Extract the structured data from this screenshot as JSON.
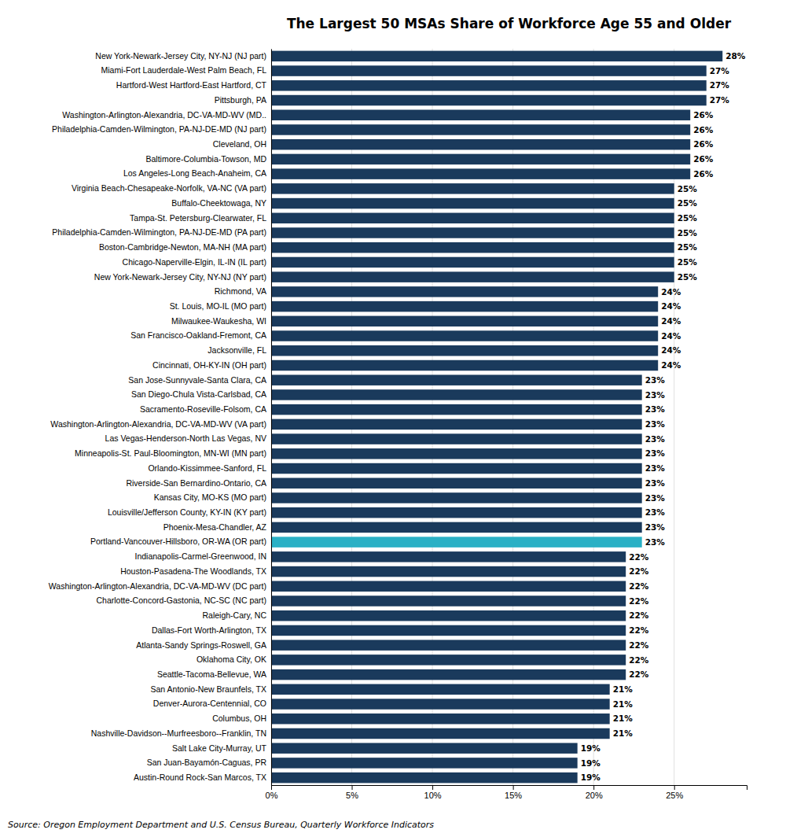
{
  "chart_data": {
    "type": "bar",
    "orientation": "horizontal",
    "title": "The Largest 50 MSAs Share of Workforce Age 55 and Older",
    "annotations": [
      "Source: Oregon Employment Department and U.S. Census Bureau, Quarterly Workforce Indicators"
    ],
    "categories": [
      "New York-Newark-Jersey City, NY-NJ (NJ part)",
      "Miami-Fort Lauderdale-West Palm Beach, FL",
      "Hartford-West Hartford-East Hartford, CT",
      "Pittsburgh, PA",
      "Washington-Arlington-Alexandria, DC-VA-MD-WV (MD..",
      "Philadelphia-Camden-Wilmington, PA-NJ-DE-MD (NJ part)",
      "Cleveland, OH",
      "Baltimore-Columbia-Towson, MD",
      "Los Angeles-Long Beach-Anaheim, CA",
      "Virginia Beach-Chesapeake-Norfolk, VA-NC (VA part)",
      "Buffalo-Cheektowaga, NY",
      "Tampa-St. Petersburg-Clearwater, FL",
      "Philadelphia-Camden-Wilmington, PA-NJ-DE-MD (PA part)",
      "Boston-Cambridge-Newton, MA-NH (MA part)",
      "Chicago-Naperville-Elgin, IL-IN (IL part)",
      "New York-Newark-Jersey City, NY-NJ (NY part)",
      "Richmond, VA",
      "St. Louis, MO-IL (MO part)",
      "Milwaukee-Waukesha, WI",
      "San Francisco-Oakland-Fremont, CA",
      "Jacksonville, FL",
      "Cincinnati, OH-KY-IN (OH part)",
      "San Jose-Sunnyvale-Santa Clara, CA",
      "San Diego-Chula Vista-Carlsbad, CA",
      "Sacramento-Roseville-Folsom, CA",
      "Washington-Arlington-Alexandria, DC-VA-MD-WV (VA part)",
      "Las Vegas-Henderson-North Las Vegas, NV",
      "Minneapolis-St. Paul-Bloomington, MN-WI (MN part)",
      "Orlando-Kissimmee-Sanford, FL",
      "Riverside-San Bernardino-Ontario, CA",
      "Kansas City, MO-KS (MO part)",
      "Louisville/Jefferson County, KY-IN (KY part)",
      "Phoenix-Mesa-Chandler, AZ",
      "Portland-Vancouver-Hillsboro, OR-WA (OR part)",
      "Indianapolis-Carmel-Greenwood, IN",
      "Houston-Pasadena-The Woodlands, TX",
      "Washington-Arlington-Alexandria, DC-VA-MD-WV (DC part)",
      "Charlotte-Concord-Gastonia, NC-SC (NC part)",
      "Raleigh-Cary, NC",
      "Dallas-Fort Worth-Arlington, TX",
      "Atlanta-Sandy Springs-Roswell, GA",
      "Oklahoma City, OK",
      "Seattle-Tacoma-Bellevue, WA",
      "San Antonio-New Braunfels, TX",
      "Denver-Aurora-Centennial, CO",
      "Columbus, OH",
      "Nashville-Davidson--Murfreesboro--Franklin, TN",
      "Salt Lake City-Murray, UT",
      "San Juan-Bayamón-Caguas, PR",
      "Austin-Round Rock-San Marcos, TX"
    ],
    "values": [
      0.28,
      0.27,
      0.27,
      0.27,
      0.26,
      0.26,
      0.26,
      0.26,
      0.26,
      0.25,
      0.25,
      0.25,
      0.25,
      0.25,
      0.25,
      0.25,
      0.24,
      0.24,
      0.24,
      0.24,
      0.24,
      0.24,
      0.23,
      0.23,
      0.23,
      0.23,
      0.23,
      0.23,
      0.23,
      0.23,
      0.23,
      0.23,
      0.23,
      0.23,
      0.22,
      0.22,
      0.22,
      0.22,
      0.22,
      0.22,
      0.22,
      0.22,
      0.22,
      0.21,
      0.21,
      0.21,
      0.21,
      0.19,
      0.19,
      0.19
    ],
    "value_labels": [
      "28%",
      "27%",
      "27%",
      "27%",
      "26%",
      "26%",
      "26%",
      "26%",
      "26%",
      "25%",
      "25%",
      "25%",
      "25%",
      "25%",
      "25%",
      "25%",
      "24%",
      "24%",
      "24%",
      "24%",
      "24%",
      "24%",
      "23%",
      "23%",
      "23%",
      "23%",
      "23%",
      "23%",
      "23%",
      "23%",
      "23%",
      "23%",
      "23%",
      "23%",
      "22%",
      "22%",
      "22%",
      "22%",
      "22%",
      "22%",
      "22%",
      "22%",
      "22%",
      "21%",
      "21%",
      "21%",
      "21%",
      "19%",
      "19%",
      "19%"
    ],
    "data_labels": true,
    "colors": [
      "#1a3a5c",
      "#1a3a5c",
      "#1a3a5c",
      "#1a3a5c",
      "#1a3a5c",
      "#1a3a5c",
      "#1a3a5c",
      "#1a3a5c",
      "#1a3a5c",
      "#1a3a5c",
      "#1a3a5c",
      "#1a3a5c",
      "#1a3a5c",
      "#1a3a5c",
      "#1a3a5c",
      "#1a3a5c",
      "#1a3a5c",
      "#1a3a5c",
      "#1a3a5c",
      "#1a3a5c",
      "#1a3a5c",
      "#1a3a5c",
      "#1a3a5c",
      "#1a3a5c",
      "#1a3a5c",
      "#1a3a5c",
      "#1a3a5c",
      "#1a3a5c",
      "#1a3a5c",
      "#1a3a5c",
      "#1a3a5c",
      "#1a3a5c",
      "#1a3a5c",
      "#2ab0c5",
      "#1a3a5c",
      "#1a3a5c",
      "#1a3a5c",
      "#1a3a5c",
      "#1a3a5c",
      "#1a3a5c",
      "#1a3a5c",
      "#1a3a5c",
      "#1a3a5c",
      "#1a3a5c",
      "#1a3a5c",
      "#1a3a5c",
      "#1a3a5c",
      "#1a3a5c",
      "#1a3a5c",
      "#1a3a5c"
    ],
    "xlim": [
      0,
      0.295
    ],
    "xticks": [
      {
        "value": 0,
        "label": "0%"
      },
      {
        "value": 0.05,
        "label": "5%"
      },
      {
        "value": 0.1,
        "label": "10%"
      },
      {
        "value": 0.15,
        "label": "15%"
      },
      {
        "value": 0.2,
        "label": "20%"
      },
      {
        "value": 0.25,
        "label": "25%"
      }
    ],
    "grid": true
  }
}
